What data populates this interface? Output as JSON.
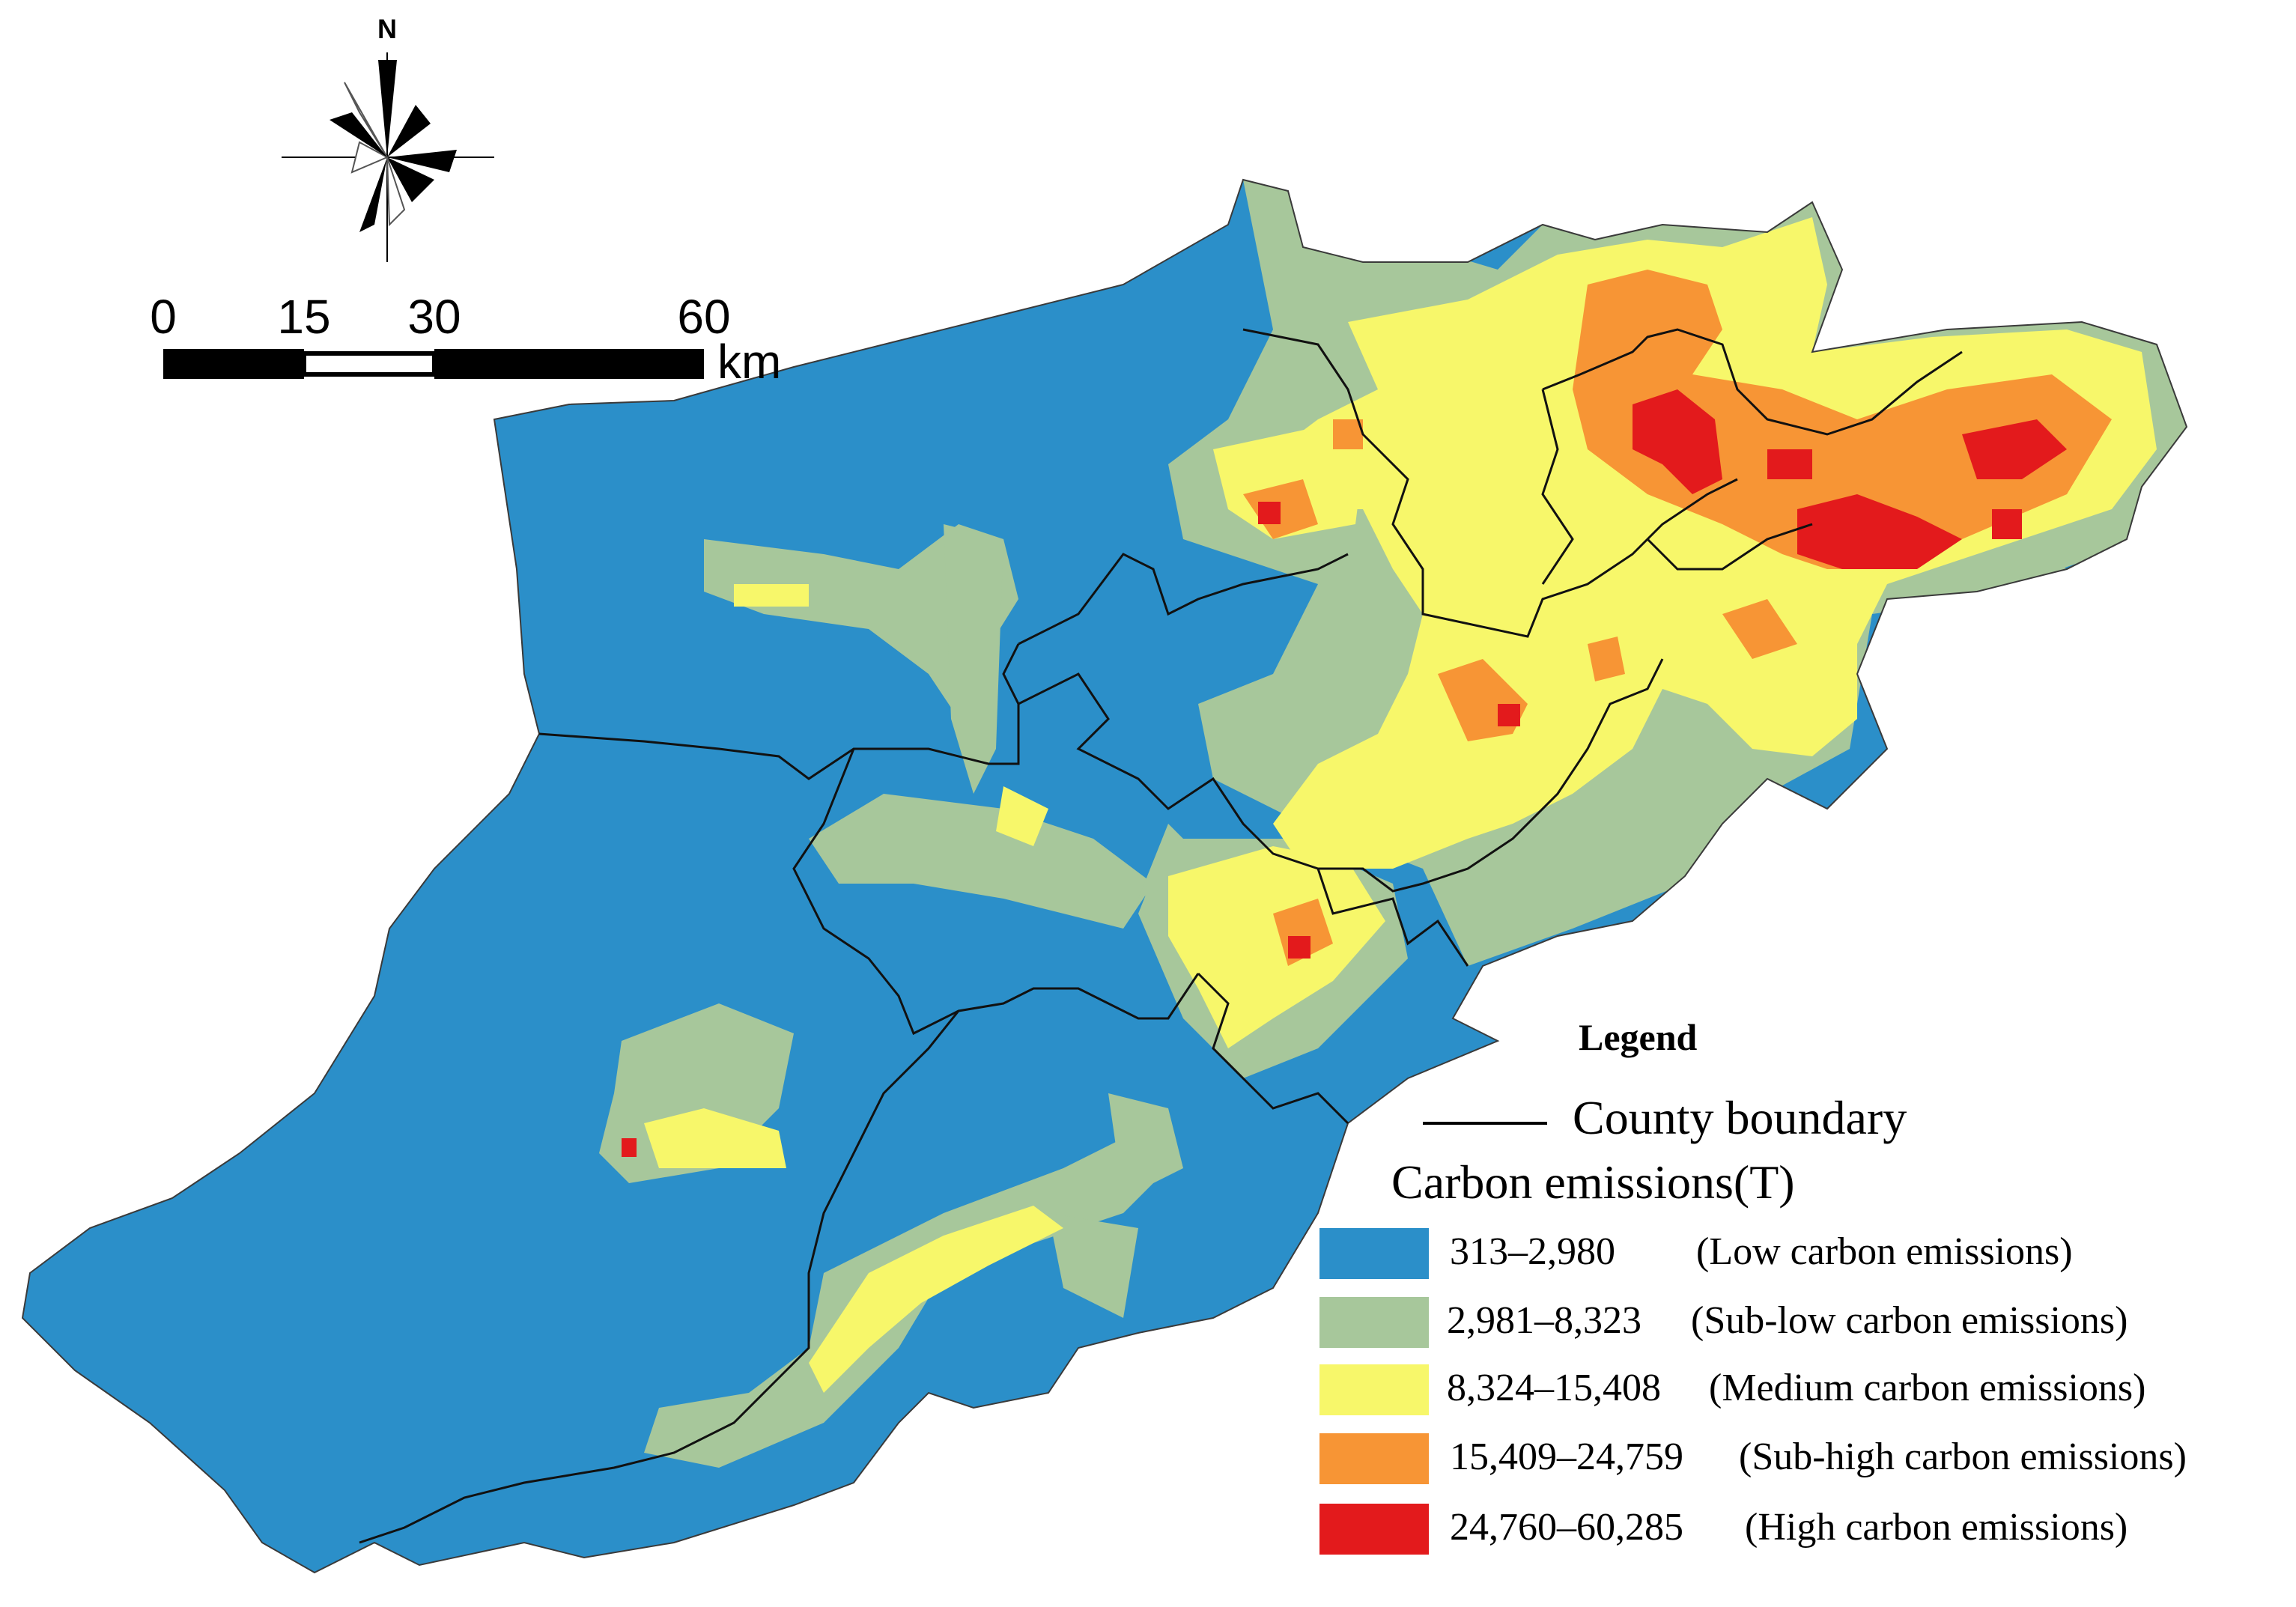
{
  "legend": {
    "title": "Legend",
    "boundary_label": "County boundary",
    "subtitle": "Carbon emissions(T)",
    "classes": [
      {
        "range": "313–2,980",
        "desc": "(Low carbon emissions)",
        "color": "#2b8fc9"
      },
      {
        "range": "2,981–8,323",
        "desc": "(Sub-low carbon emissions)",
        "color": "#a7c79b"
      },
      {
        "range": "8,324–15,408",
        "desc": "(Medium carbon emissions)",
        "color": "#f7f76a"
      },
      {
        "range": "15,409–24,759",
        "desc": "(Sub-high carbon emissions)",
        "color": "#f79535"
      },
      {
        "range": "24,760–60,285",
        "desc": "(High carbon emissions)",
        "color": "#e31a1c"
      }
    ]
  },
  "scale_bar": {
    "ticks": [
      "0",
      "15",
      "30",
      "60"
    ],
    "unit": "km"
  },
  "north_arrow": {
    "label": "N"
  }
}
